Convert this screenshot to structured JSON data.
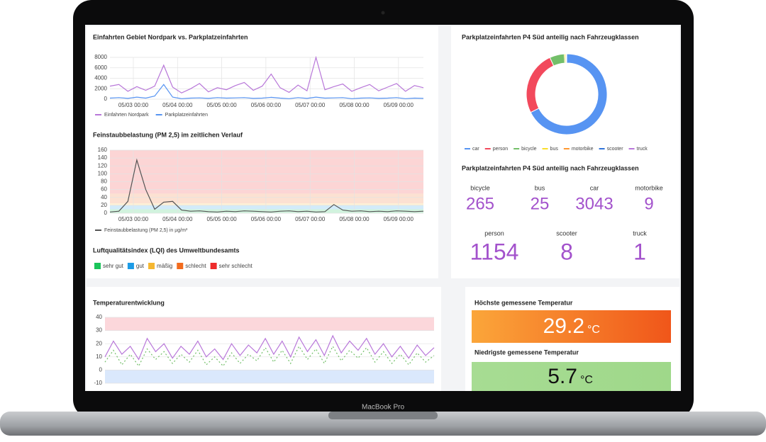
{
  "device_label": "MacBook Pro",
  "panels": {
    "entries": {
      "title": "Einfahrten Gebiet Nordpark vs. Parkplatzeinfahrten",
      "ylim": [
        0,
        8000
      ],
      "yticks": [
        0,
        2000,
        4000,
        6000,
        8000
      ],
      "xticks": [
        "05/03 00:00",
        "05/04 00:00",
        "05/05 00:00",
        "05/06 00:00",
        "05/07 00:00",
        "05/08 00:00",
        "05/09 00:00"
      ],
      "series": [
        {
          "name": "Einfahrten Nordpark",
          "color": "#b877d9",
          "values": [
            2500,
            2800,
            1500,
            2400,
            1700,
            2500,
            6500,
            2300,
            1200,
            2000,
            3000,
            1400,
            2200,
            1800,
            2600,
            3200,
            1700,
            2500,
            4800,
            2200,
            1300,
            2700,
            1600,
            8000,
            1800,
            2400,
            2900,
            1500,
            2200,
            2800,
            1600,
            2300,
            3000,
            1500,
            2600,
            2200
          ]
        },
        {
          "name": "Parkplatzeinfahrten",
          "color": "#5794f2",
          "values": [
            200,
            300,
            150,
            400,
            200,
            600,
            2800,
            400,
            100,
            200,
            250,
            150,
            300,
            200,
            250,
            300,
            150,
            200,
            350,
            200,
            100,
            300,
            150,
            400,
            200,
            250,
            300,
            100,
            200,
            250,
            150,
            200,
            300,
            100,
            200,
            150
          ]
        }
      ]
    },
    "pm": {
      "title": "Feinstaubbelastung (PM 2,5) im zeitlichen Verlauf",
      "ylim": [
        0,
        160
      ],
      "yticks": [
        0,
        20,
        40,
        60,
        80,
        100,
        120,
        140,
        160
      ],
      "xticks": [
        "05/03 00:00",
        "05/04 00:00",
        "05/05 00:00",
        "05/06 00:00",
        "05/07 00:00",
        "05/08 00:00",
        "05/09 00:00"
      ],
      "series": [
        {
          "name": "Feinstaubbelastung (PM 2,5) in µg/m³",
          "color": "#555555",
          "values": [
            3,
            5,
            30,
            135,
            60,
            10,
            28,
            30,
            8,
            5,
            6,
            4,
            3,
            5,
            4,
            6,
            5,
            4,
            3,
            5,
            6,
            4,
            5,
            3,
            4,
            22,
            8,
            5,
            6,
            4,
            5,
            4,
            6,
            5,
            4,
            5
          ]
        }
      ],
      "lqi": {
        "title": "Luftqualitätsindex (LQI) des Umweltbundesamts",
        "legend": [
          {
            "name": "sehr gut",
            "color": "#1bc45a",
            "range": [
              0,
              10
            ]
          },
          {
            "name": "gut",
            "color": "#1d9be6",
            "range": [
              10,
              20
            ]
          },
          {
            "name": "mäßig",
            "color": "#f5b731",
            "range": [
              20,
              25
            ]
          },
          {
            "name": "schlecht",
            "color": "#f26b1d",
            "range": [
              25,
              50
            ]
          },
          {
            "name": "sehr schlecht",
            "color": "#ee2b2b",
            "range": [
              50,
              160
            ]
          }
        ]
      }
    },
    "donut": {
      "title": "Parkplatzeinfahrten P4 Süd anteilig nach Fahrzeugklassen",
      "categories": [
        "car",
        "person",
        "bicycle",
        "bus",
        "motorbike",
        "scooter",
        "truck"
      ],
      "values": [
        3043,
        1154,
        265,
        25,
        9,
        8,
        1
      ],
      "colors": [
        "#5794f2",
        "#f2495c",
        "#73bf69",
        "#fade2a",
        "#ff9830",
        "#3274d9",
        "#b877d9"
      ]
    },
    "stats": {
      "title": "Parkplatzeinfahrten P4 Süd anteilig nach Fahrzeugklassen",
      "items": [
        {
          "label": "bicycle",
          "value": 265
        },
        {
          "label": "bus",
          "value": 25
        },
        {
          "label": "car",
          "value": 3043
        },
        {
          "label": "motorbike",
          "value": 9
        },
        {
          "label": "person",
          "value": 1154
        },
        {
          "label": "scooter",
          "value": 8
        },
        {
          "label": "truck",
          "value": 1
        }
      ],
      "color": "#a352cc"
    },
    "temperature": {
      "title": "Temperaturentwicklung",
      "ylim": [
        -10,
        40
      ],
      "yticks": [
        -10,
        0,
        10,
        20,
        30,
        40
      ],
      "bands": [
        {
          "range": [
            30,
            40
          ],
          "color": "#f2495c"
        },
        {
          "range": [
            -10,
            0
          ],
          "color": "#5794f2"
        }
      ],
      "series": [
        {
          "color": "#b877d9",
          "values": [
            10,
            22,
            12,
            18,
            8,
            24,
            14,
            20,
            9,
            18,
            12,
            22,
            10,
            16,
            8,
            20,
            11,
            19,
            13,
            24,
            12,
            22,
            10,
            25,
            14,
            23,
            11,
            26,
            13,
            22,
            15,
            24,
            12,
            20,
            10,
            18,
            9,
            19,
            11,
            17
          ]
        },
        {
          "color": "#73bf69",
          "values": [
            6,
            15,
            4,
            12,
            3,
            16,
            8,
            14,
            5,
            12,
            6,
            15,
            4,
            10,
            3,
            13,
            5,
            12,
            7,
            17,
            6,
            15,
            5,
            18,
            8,
            16,
            5,
            18,
            7,
            15,
            9,
            17,
            6,
            14,
            5,
            12,
            4,
            13,
            6,
            11
          ]
        }
      ]
    },
    "max_temp": {
      "title": "Höchste gemessene Temperatur",
      "value": 29.2,
      "unit": "°C"
    },
    "min_temp": {
      "title": "Niedrigste gemessene Temperatur",
      "value": 5.7,
      "unit": "°C"
    }
  }
}
